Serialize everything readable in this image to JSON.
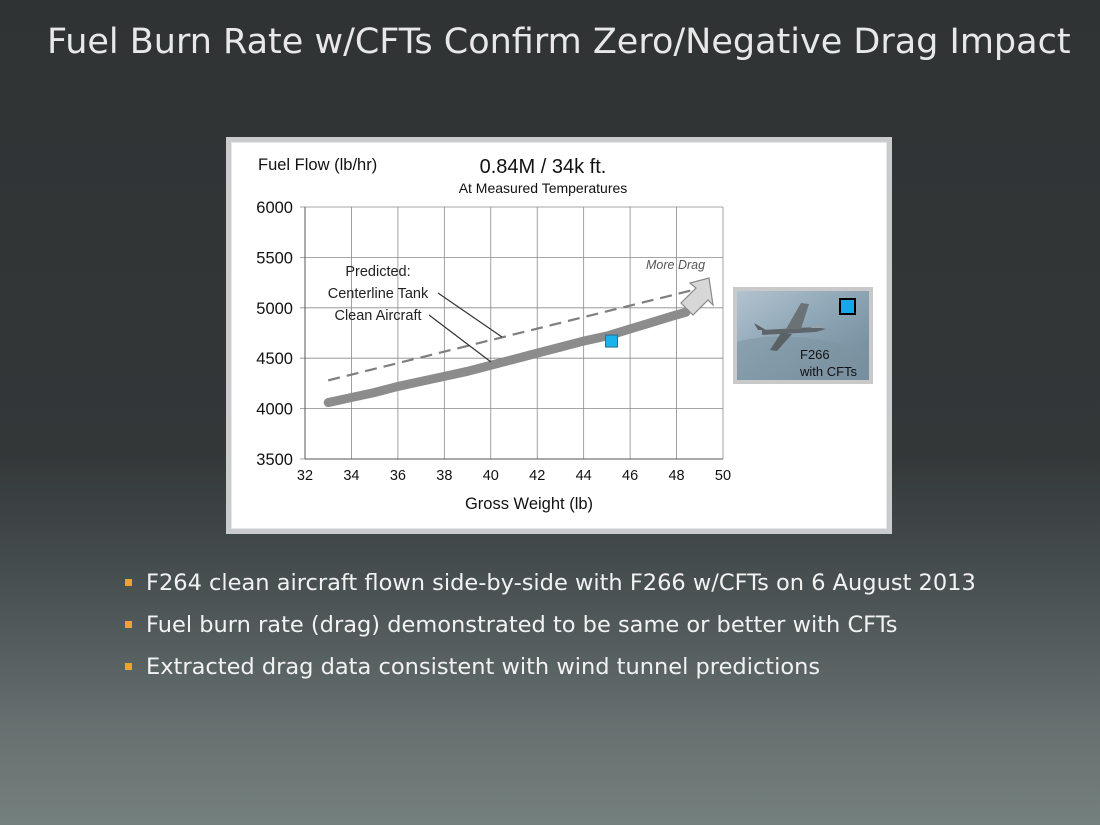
{
  "slide": {
    "title": "Fuel Burn Rate w/CFTs Confirm Zero/Negative Drag Impact",
    "bullets": [
      "F264 clean aircraft flown side-by-side with F266 w/CFTs on 6 August 2013",
      "Fuel burn rate (drag) demonstrated to be same or better with CFTs",
      "Extracted drag data consistent with wind tunnel predictions"
    ],
    "bullet_color": "#f0a22e"
  },
  "chart_data": {
    "type": "line",
    "title": "0.84M / 34k ft.",
    "subtitle": "At Measured Temperatures",
    "xlabel": "Gross Weight (lb)",
    "ylabel": "Fuel Flow (lb/hr)",
    "xlim": [
      32,
      50
    ],
    "ylim": [
      3500,
      6000
    ],
    "x_ticks": [
      32,
      34,
      36,
      38,
      40,
      42,
      44,
      46,
      48,
      50
    ],
    "y_ticks": [
      3500,
      4000,
      4500,
      5000,
      5500,
      6000
    ],
    "grid": true,
    "series": [
      {
        "name": "Centerline Tank",
        "style": "dashed",
        "color": "#7f7f7f",
        "x": [
          33,
          48.6
        ],
        "y": [
          4280,
          5170
        ]
      },
      {
        "name": "Clean Aircraft",
        "style": "thick",
        "color": "#8c8c8c",
        "x": [
          33,
          34,
          35,
          36,
          37,
          38,
          39,
          40,
          41,
          42,
          43,
          44,
          45,
          46,
          47,
          48,
          48.4
        ],
        "y": [
          4060,
          4110,
          4160,
          4220,
          4270,
          4320,
          4370,
          4430,
          4490,
          4550,
          4610,
          4670,
          4720,
          4790,
          4860,
          4930,
          4955
        ]
      },
      {
        "name": "F266 with CFTs",
        "style": "marker",
        "color": "#1ab4ea",
        "x": [
          45.2
        ],
        "y": [
          4670
        ]
      }
    ],
    "annotations": {
      "predicted": [
        "Predicted:",
        "Centerline Tank",
        "Clean Aircraft"
      ],
      "more_drag": "More Drag",
      "photo_label": [
        "F266",
        "with CFTs"
      ]
    }
  }
}
